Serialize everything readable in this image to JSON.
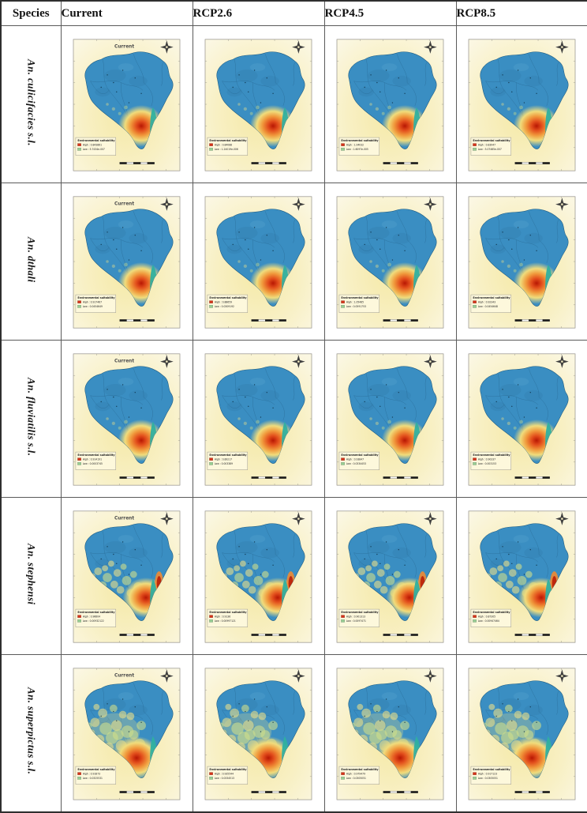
{
  "figure": {
    "headers": [
      "Species",
      "Current",
      "RCP2.6",
      "RCP4.5",
      "RCP8.5"
    ],
    "legend_title": "Environmental suitability",
    "colors": {
      "region_blue": "#3a8ec2",
      "high_red": "#d63318",
      "low_green": "#97cf93",
      "hotspot_core": "#b81703",
      "teal_strip": "#2fb0a0",
      "sheet_cream": "#f8f0c4"
    },
    "rows": [
      {
        "species": "An. culicifacies s.l.",
        "pattern": "tail-hotspot",
        "maps": [
          {
            "title": "Current",
            "high": "High : 0.843861",
            "low": "Low : 5.7434e-007"
          },
          {
            "title": "",
            "high": "High : 0.84088",
            "low": "Low : 1.24019e-006"
          },
          {
            "title": "",
            "high": "High : 1.04032",
            "low": "Low : 1.6097e-005"
          },
          {
            "title": "",
            "high": "High : 0.83947",
            "low": "Low : 5.07465e-007"
          }
        ]
      },
      {
        "species": "An. dthali",
        "pattern": "tail-hotspot",
        "maps": [
          {
            "title": "Current",
            "high": "High : 0.917467",
            "low": "Low : 0.0454649"
          },
          {
            "title": "",
            "high": "High : 0.88659",
            "low": "Low : 0.0309192"
          },
          {
            "title": "",
            "high": "High : 1.05485",
            "low": "Low : 0.0591753"
          },
          {
            "title": "",
            "high": "High : 0.92343",
            "low": "Low : 0.0454648"
          }
        ]
      },
      {
        "species": "An. fluviatilis s.l.",
        "pattern": "tail-hotspot",
        "maps": [
          {
            "title": "Current",
            "high": "High : 0.914191",
            "low": "Low : 0.0003745"
          },
          {
            "title": "",
            "high": "High : 0.89217",
            "low": "Low : 0.003389"
          },
          {
            "title": "",
            "high": "High : 0.93847",
            "low": "Low : 0.0334453"
          },
          {
            "title": "",
            "high": "High : 0.90337",
            "low": "Low : 0.003153"
          }
        ]
      },
      {
        "species": "An. stephensi",
        "pattern": "right-band",
        "maps": [
          {
            "title": "Current",
            "high": "High : 0.96604",
            "low": "Low : 0.00932122"
          },
          {
            "title": "",
            "high": "High : 0.9136",
            "low": "Low : 0.00997121"
          },
          {
            "title": "",
            "high": "High : 0.901313",
            "low": "Low : 0.0097471"
          },
          {
            "title": "",
            "high": "High : 0.87305",
            "low": "Low : 0.00947464"
          }
        ]
      },
      {
        "species": "An. superpictus s.l.",
        "pattern": "broad-mottle",
        "maps": [
          {
            "title": "Current",
            "high": "High : 0.91873",
            "low": "Low : 0.0325531"
          },
          {
            "title": "",
            "high": "High : 0.935544",
            "low": "Low : 0.0334513"
          },
          {
            "title": "",
            "high": "High : 0.979479",
            "low": "Low : 0.0305051"
          },
          {
            "title": "",
            "high": "High : 0.917123",
            "low": "Low : 0.0305051"
          }
        ]
      }
    ]
  }
}
